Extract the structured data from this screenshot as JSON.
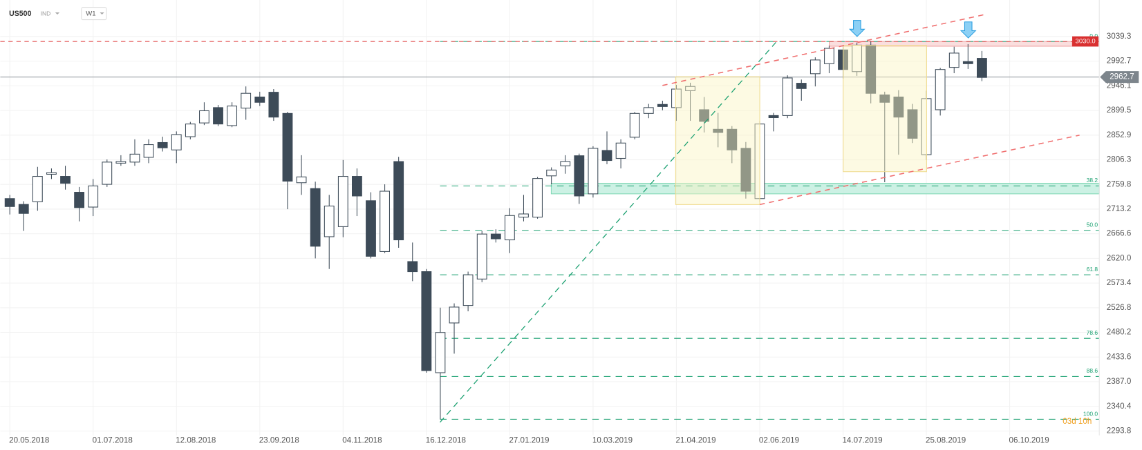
{
  "header": {
    "symbol": "US500",
    "market": "IND",
    "timeframe": "W1"
  },
  "chart_data": {
    "type": "candlestick",
    "x_axis_labels": [
      "20.05.2018",
      "01.07.2018",
      "12.08.2018",
      "23.09.2018",
      "04.11.2018",
      "16.12.2018",
      "27.01.2019",
      "10.03.2019",
      "21.04.2019",
      "02.06.2019",
      "14.07.2019",
      "25.08.2019",
      "06.10.2019"
    ],
    "open": [
      2733,
      2722,
      2727,
      2779,
      2775,
      2745,
      2717,
      2760,
      2800,
      2802,
      2811,
      2839,
      2825,
      2850,
      2876,
      2905,
      2871,
      2904,
      2925,
      2934,
      2894,
      2763,
      2752,
      2661,
      2680,
      2775,
      2729,
      2633,
      2803,
      2614,
      2595,
      2404,
      2498,
      2531,
      2581,
      2666,
      2655,
      2698,
      2698,
      2776,
      2795,
      2814,
      2742,
      2824,
      2809,
      2849,
      2894,
      2911,
      2905,
      2937,
      2901,
      2864,
      2864,
      2828,
      2733,
      2890,
      2890,
      2951,
      2969,
      2988,
      3014,
      2973,
      3023,
      2929,
      2925,
      2901,
      2816,
      2901,
      2981,
      2992,
      2998
    ],
    "high": [
      2740,
      2728,
      2793,
      2790,
      2795,
      2755,
      2770,
      2807,
      2815,
      2845,
      2845,
      2850,
      2860,
      2878,
      2915,
      2910,
      2915,
      2945,
      2935,
      2940,
      2897,
      2815,
      2765,
      2740,
      2806,
      2790,
      2745,
      2760,
      2812,
      2650,
      2600,
      2527,
      2535,
      2595,
      2672,
      2675,
      2715,
      2740,
      2774,
      2792,
      2815,
      2818,
      2832,
      2860,
      2845,
      2897,
      2912,
      2918,
      2948,
      2952,
      2925,
      2895,
      2870,
      2840,
      2880,
      2895,
      2966,
      2958,
      3000,
      3022,
      3022,
      3028,
      3030,
      2935,
      2938,
      2912,
      2937,
      2980,
      3020,
      3025,
      3012
    ],
    "low": [
      2703,
      2672,
      2710,
      2770,
      2750,
      2690,
      2700,
      2755,
      2795,
      2795,
      2800,
      2822,
      2800,
      2845,
      2872,
      2870,
      2868,
      2882,
      2908,
      2880,
      2713,
      2740,
      2620,
      2600,
      2660,
      2700,
      2620,
      2630,
      2640,
      2577,
      2404,
      2316,
      2440,
      2520,
      2575,
      2650,
      2630,
      2690,
      2695,
      2760,
      2780,
      2723,
      2735,
      2798,
      2790,
      2845,
      2885,
      2900,
      2880,
      2880,
      2858,
      2830,
      2800,
      2733,
      2727,
      2860,
      2885,
      2918,
      2945,
      2970,
      2960,
      2965,
      2913,
      2764,
      2816,
      2838,
      2806,
      2890,
      2970,
      2978,
      2955
    ],
    "close": [
      2718,
      2705,
      2775,
      2782,
      2762,
      2716,
      2757,
      2802,
      2803,
      2817,
      2835,
      2829,
      2854,
      2874,
      2899,
      2874,
      2908,
      2932,
      2915,
      2887,
      2766,
      2774,
      2643,
      2719,
      2775,
      2738,
      2624,
      2747,
      2655,
      2595,
      2408,
      2480,
      2528,
      2589,
      2666,
      2657,
      2701,
      2704,
      2771,
      2787,
      2803,
      2738,
      2828,
      2805,
      2838,
      2894,
      2905,
      2907,
      2940,
      2945,
      2879,
      2858,
      2825,
      2747,
      2874,
      2886,
      2961,
      2941,
      2995,
      3017,
      2977,
      3023,
      2932,
      2915,
      2887,
      2847,
      2922,
      2977,
      3008,
      2988,
      2962
    ],
    "up_color": "#ffffff",
    "down_color": "#3d4b58",
    "ylim": [
      2293.8,
      3039.3
    ],
    "yticks": [
      3039.3,
      2992.7,
      2946.1,
      2899.5,
      2852.9,
      2806.3,
      2759.8,
      2713.2,
      2666.6,
      {
        "value": 2620,
        "label": "2620.0"
      },
      2573.4,
      2526.8,
      2480.2,
      2433.6,
      {
        "value": 2387,
        "label": "2387.0"
      },
      2340.4,
      2293.8
    ],
    "grid": true,
    "resistance": {
      "value": 3030,
      "label": "3030.0"
    },
    "resistance_zone": [
      3021,
      3030
    ],
    "last_price": 2962.7,
    "support_zone": [
      2742,
      2762
    ],
    "fib_labels": [
      "0.0",
      "38.2",
      "50.0",
      "61.8",
      "78.6",
      "88.6",
      "100.0"
    ],
    "fib_prices": [
      3030,
      2757,
      2673,
      2589,
      2469,
      2397,
      2316
    ],
    "countdown": "03d 10h"
  }
}
